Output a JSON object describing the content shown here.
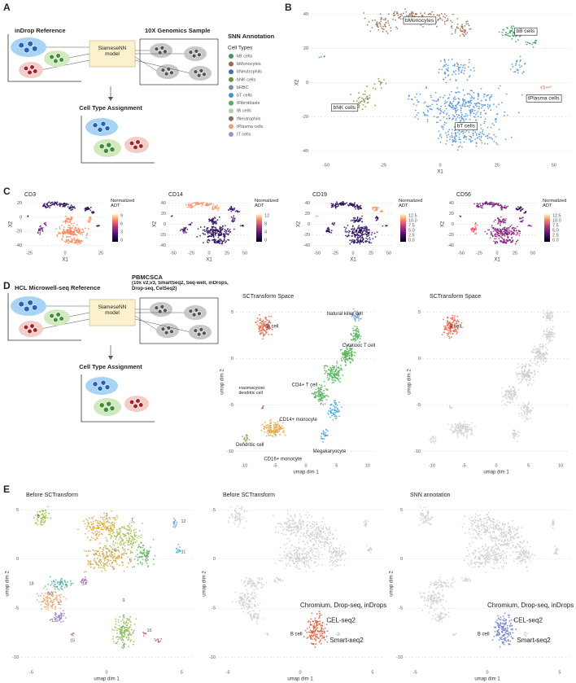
{
  "panel_labels": [
    "A",
    "B",
    "C",
    "D",
    "E"
  ],
  "schematic_a": {
    "reference": "inDrop Reference",
    "sample": "10X Genomics Sample",
    "model": "SiameseNN model",
    "assignment": "Cell Type Assignment"
  },
  "legend": {
    "title": "SNN Annotation",
    "subtitle": "Cell Types",
    "items": [
      {
        "name": "bB cells",
        "color": "#3b9a5e"
      },
      {
        "name": "bMonocytes",
        "color": "#9b6a4f"
      },
      {
        "name": "bNeutrophils",
        "color": "#4d6fa8"
      },
      {
        "name": "bNK cells",
        "color": "#6f8f3a"
      },
      {
        "name": "bRBC",
        "color": "#7e8fa0"
      },
      {
        "name": "bT cells",
        "color": "#4f8fcf"
      },
      {
        "name": "tFibroblasts",
        "color": "#5aa86a"
      },
      {
        "name": "tB cells",
        "color": "#a7d7a6"
      },
      {
        "name": "tNeutrophils",
        "color": "#8c6e5c"
      },
      {
        "name": "tPlasma cells",
        "color": "#e8a27a"
      },
      {
        "name": "tT cells",
        "color": "#9d94c8"
      }
    ]
  },
  "plot_b": {
    "x_label": "X1",
    "y_label": "X2",
    "xticks": [
      -50,
      -25,
      0,
      25,
      50
    ],
    "yticks": [
      40,
      20,
      0,
      -20,
      -40
    ],
    "annotations": [
      "bMonocytes",
      "bB cells",
      "bNK cells",
      "tPlasma cells",
      "bT cells"
    ]
  },
  "plots_c": [
    {
      "title": "CD3",
      "legend_title": "Normalized ADT",
      "x_label": "X1",
      "y_label": "X2",
      "xticks": [
        -25,
        0,
        25
      ],
      "yticks": [
        20,
        0,
        -20,
        -40
      ],
      "scale_ticks": [
        0,
        3,
        6,
        9
      ]
    },
    {
      "title": "CD14",
      "legend_title": "Normalized ADT",
      "x_label": "X1",
      "y_label": "X2",
      "xticks": [
        -50,
        -25,
        0,
        25,
        50
      ],
      "yticks": [
        40,
        20,
        0,
        -20,
        -40
      ],
      "scale_ticks": [
        0,
        4,
        8,
        12
      ]
    },
    {
      "title": "CD19",
      "legend_title": "Normalized ADT",
      "x_label": "X1",
      "y_label": "X2",
      "xticks": [
        -50,
        -25,
        0,
        25,
        50
      ],
      "yticks": [
        40,
        20,
        0,
        -20,
        -40
      ],
      "scale_ticks": [
        {
          "value": 0,
          "label": "0.0"
        },
        {
          "value": 2.5,
          "label": "2.5"
        },
        {
          "value": 5,
          "label": "5.0"
        },
        {
          "value": 7.5,
          "label": "7.5"
        },
        {
          "value": 10,
          "label": "10.0"
        },
        {
          "value": 12.5,
          "label": "12.5"
        }
      ]
    },
    {
      "title": "CD56",
      "legend_title": "Normalized ADT",
      "x_label": "X1",
      "y_label": "X2",
      "xticks": [
        -50,
        -25,
        0,
        25,
        50
      ],
      "yticks": [
        40,
        20,
        0,
        -20,
        -40
      ],
      "scale_ticks": [
        {
          "value": 0,
          "label": "0.0"
        },
        {
          "value": 2.5,
          "label": "2.5"
        },
        {
          "value": 5,
          "label": "5.0"
        },
        {
          "value": 7.5,
          "label": "7.5"
        },
        {
          "value": 10,
          "label": "10.0"
        },
        {
          "value": 12.5,
          "label": "12.5"
        }
      ]
    }
  ],
  "schematic_d": {
    "reference": "HCL Microwell-seq Reference",
    "sample": "PBMCSCA",
    "sample_detail": "(10x v2,v3, SmartSeq2, Seq-well, inDrops, Drop-seq, CelSeq2)",
    "model": "SiameseNN model",
    "assignment": "Cell Type Assignment"
  },
  "plots_d": [
    {
      "title": "SCTransform Space",
      "x_label": "umap dim 1",
      "y_label": "umap dim 2",
      "xticks": [
        -10,
        -5,
        0,
        5,
        10
      ],
      "yticks": [
        5,
        0,
        -5,
        -10
      ],
      "annotations": [
        "B cell",
        "Natural killer cell",
        "Cytotoxic T cell",
        "CD4+ T cell",
        "Plasmacytoid dendritic cell",
        "Megakaryocyte",
        "CD14+ monocyte",
        "Dendritic cell",
        "CD16+ monocyte"
      ]
    },
    {
      "title": "SCTransform Space",
      "x_label": "umap dim 1",
      "y_label": "umap dim 2",
      "xticks": [
        -10,
        -5,
        0,
        5,
        10
      ],
      "yticks": [
        5,
        0,
        -5,
        -10
      ],
      "annotations": [
        "B cell"
      ]
    }
  ],
  "plots_e": [
    {
      "title": "Before SCTransform",
      "x_label": "umap dim 1",
      "y_label": "umap dim 2",
      "xticks": [
        -5,
        0,
        5
      ],
      "yticks": [
        5,
        0,
        -5,
        -10
      ],
      "annotations": [
        0,
        1,
        2,
        3,
        4,
        5,
        6,
        7,
        8,
        9,
        10,
        11,
        12,
        13,
        14,
        15,
        16,
        17,
        18
      ]
    },
    {
      "title": "Before SCTransform",
      "x_label": "umap dim 1",
      "y_label": "umap dim 2",
      "xticks": [
        -5,
        0,
        5
      ],
      "yticks": [
        5,
        0,
        -5,
        -10
      ],
      "annotations": [
        "Chromium, Drop-seq, inDrops",
        "CEL-seq2",
        "B cell",
        "Smart-seq2"
      ]
    },
    {
      "title": "SNN annotation",
      "x_label": "umap dim 1",
      "y_label": "umap dim 2",
      "xticks": [
        -5,
        0,
        5
      ],
      "yticks": [
        5,
        0,
        -5,
        -10
      ],
      "annotations": [
        "Chromium, Drop-seq, inDrops",
        "CEL-seq2",
        "B cell",
        "Smart-seq2"
      ]
    }
  ]
}
